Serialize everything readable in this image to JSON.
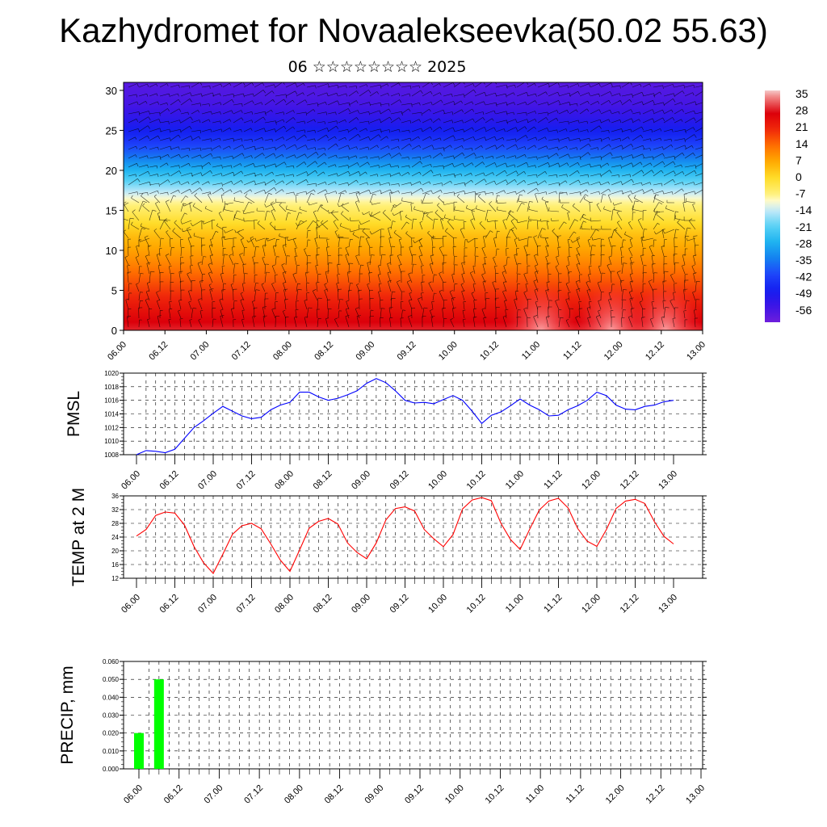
{
  "header": {
    "title": "Kazhydromet for Novaalekseevka(50.02 55.63)",
    "subtitle": "06 ☆☆☆☆☆☆☆☆ 2025"
  },
  "chart_data": [
    {
      "type": "heatmap",
      "title": "Kazhydromet for Novaalekseevka(50.02 55.63)",
      "subtitle": "06 ☆☆☆☆☆☆☆☆ 2025",
      "xlabel": "",
      "ylabel": "",
      "x_ticks": [
        "06.00",
        "06.12",
        "07.00",
        "07.12",
        "08.00",
        "08.12",
        "09.00",
        "09.12",
        "10.00",
        "10.12",
        "11.00",
        "11.12",
        "12.00",
        "12.12",
        "13.00"
      ],
      "y_ticks": [
        0,
        5,
        10,
        15,
        20,
        25,
        30
      ],
      "ylim": [
        0,
        31
      ],
      "colorbar_ticks": [
        35,
        28,
        21,
        14,
        7,
        0,
        -7,
        -14,
        -21,
        -28,
        -35,
        -42,
        -49,
        -56
      ],
      "colorbar_range": [
        -63,
        38
      ],
      "field": "temperature profile with wind barbs",
      "temperature_by_height": {
        "heights": [
          0,
          3,
          6,
          9,
          12,
          14,
          16,
          18,
          20,
          22,
          24,
          26,
          28,
          31
        ],
        "temps": [
          30,
          24,
          17,
          10,
          4,
          -2,
          -8,
          -18,
          -28,
          -38,
          -46,
          -52,
          -57,
          -60
        ]
      }
    },
    {
      "type": "line",
      "ylabel": "PMSL",
      "ylim": [
        1008,
        1020
      ],
      "y_ticks": [
        1008,
        1010,
        1012,
        1014,
        1016,
        1018,
        1020
      ],
      "x_ticks": [
        "06.00",
        "06.12",
        "07.00",
        "07.12",
        "08.00",
        "08.12",
        "09.00",
        "09.12",
        "10.00",
        "10.12",
        "11.00",
        "11.12",
        "12.00",
        "12.12",
        "13.00"
      ],
      "line_color": "#0000ff",
      "series": [
        {
          "values": [
            1008.0,
            1008.6,
            1008.5,
            1008.3,
            1008.8,
            1010.4,
            1012.0,
            1013.0,
            1014.1,
            1015.1,
            1014.4,
            1013.7,
            1013.3,
            1013.5,
            1014.6,
            1015.3,
            1015.7,
            1017.2,
            1017.2,
            1016.5,
            1016.0,
            1016.3,
            1016.8,
            1017.4,
            1018.5,
            1019.2,
            1018.6,
            1017.4,
            1016.0,
            1015.6,
            1015.7,
            1015.5,
            1016.1,
            1016.7,
            1016.0,
            1014.4,
            1012.6,
            1013.8,
            1014.3,
            1015.2,
            1016.2,
            1015.3,
            1014.6,
            1013.7,
            1013.8,
            1014.6,
            1015.2,
            1016.0,
            1017.2,
            1016.7,
            1015.3,
            1014.7,
            1014.6,
            1015.1,
            1015.3,
            1015.8,
            1016.0
          ]
        }
      ]
    },
    {
      "type": "line",
      "ylabel": "TEMP at 2 M",
      "ylim": [
        12,
        36
      ],
      "y_ticks": [
        12,
        16,
        20,
        24,
        28,
        32,
        36
      ],
      "x_ticks": [
        "06.00",
        "06.12",
        "07.00",
        "07.12",
        "08.00",
        "08.12",
        "09.00",
        "09.12",
        "10.00",
        "10.12",
        "11.00",
        "11.12",
        "12.00",
        "12.12",
        "13.00"
      ],
      "line_color": "#ff0000",
      "series": [
        {
          "values": [
            24.3,
            26.2,
            30.3,
            31.3,
            31.0,
            27.5,
            21.2,
            16.5,
            13.4,
            19.0,
            24.8,
            27.3,
            28.0,
            26.4,
            22.0,
            17.3,
            14.0,
            20.2,
            26.6,
            28.6,
            29.4,
            27.8,
            22.3,
            19.5,
            17.7,
            22.3,
            29.0,
            32.3,
            32.8,
            31.6,
            26.2,
            23.5,
            21.2,
            24.7,
            32.2,
            34.8,
            35.5,
            34.6,
            28.0,
            23.3,
            20.4,
            26.3,
            31.9,
            34.5,
            35.3,
            32.5,
            26.5,
            22.8,
            21.3,
            26.2,
            32.3,
            34.5,
            35.0,
            33.8,
            28.5,
            24.2,
            22.0
          ]
        }
      ]
    },
    {
      "type": "bar",
      "ylabel": "PRECIP, mm",
      "ylim": [
        0,
        0.06
      ],
      "y_ticks": [
        "0.000",
        "0.010",
        "0.020",
        "0.030",
        "0.040",
        "0.050",
        "0.060"
      ],
      "x_ticks": [
        "06.00",
        "06.12",
        "07.00",
        "07.12",
        "08.00",
        "08.12",
        "09.00",
        "09.12",
        "10.00",
        "10.12",
        "11.00",
        "11.12",
        "12.00",
        "12.12",
        "13.00"
      ],
      "bar_color": "#00ff00",
      "bars": [
        {
          "step": 0,
          "value": 0.02
        },
        {
          "step": 2,
          "value": 0.05
        }
      ]
    }
  ]
}
